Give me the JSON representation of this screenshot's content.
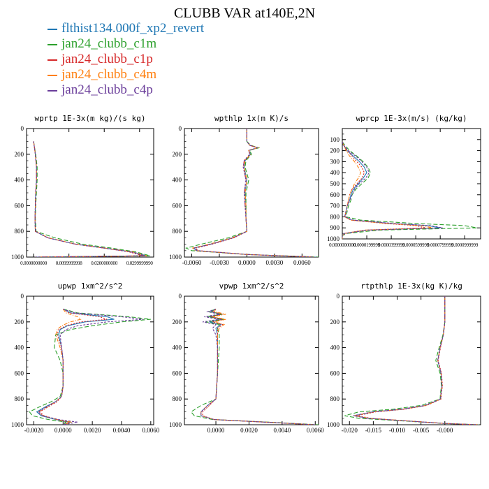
{
  "title": "CLUBB VAR at140E,2N",
  "legend": [
    {
      "name": "flthist134.000f_xp2_revert",
      "color": "#1f77b4"
    },
    {
      "name": "jan24_clubb_c1m",
      "color": "#2ca02c"
    },
    {
      "name": "jan24_clubb_c1p",
      "color": "#d62728"
    },
    {
      "name": "jan24_clubb_c4m",
      "color": "#ff7f0e"
    },
    {
      "name": "jan24_clubb_c4p",
      "color": "#6a3d9a"
    }
  ],
  "chart_data": [
    {
      "type": "line",
      "title": "wprtp  1E-3x(m kg)/(s kg)",
      "xlim": [
        -0.002,
        0.034
      ],
      "ylim": [
        0,
        1000
      ],
      "xticks": [
        0.0,
        0.01,
        0.02,
        0.03
      ],
      "xtick_labels": [
        "0.0000000000",
        "0.0099999998",
        "0.0200000000",
        "0.0299999990"
      ],
      "yticks": [
        0,
        200,
        400,
        600,
        800,
        1000
      ],
      "y": [
        100,
        200,
        300,
        400,
        500,
        600,
        700,
        800,
        850,
        900,
        930,
        960,
        990,
        1000
      ],
      "series": [
        {
          "name": "flthist134.000f_xp2_revert",
          "values": [
            0.0,
            0.0005,
            0.0008,
            0.0008,
            0.0006,
            0.0005,
            0.0004,
            0.0005,
            0.004,
            0.012,
            0.02,
            0.028,
            0.032,
            0.0005
          ]
        },
        {
          "name": "jan24_clubb_c1m",
          "values": [
            0.0,
            0.0006,
            0.001,
            0.001,
            0.0008,
            0.0006,
            0.0005,
            0.0007,
            0.006,
            0.014,
            0.022,
            0.029,
            0.033,
            0.0005
          ]
        },
        {
          "name": "jan24_clubb_c1p",
          "values": [
            0.0,
            0.0005,
            0.0008,
            0.0008,
            0.0006,
            0.0005,
            0.0004,
            0.0005,
            0.004,
            0.012,
            0.02,
            0.027,
            0.031,
            0.0005
          ]
        },
        {
          "name": "jan24_clubb_c4m",
          "values": [
            0.0,
            0.0005,
            0.0008,
            0.0008,
            0.0006,
            0.0005,
            0.0004,
            0.0005,
            0.0042,
            0.012,
            0.02,
            0.028,
            0.032,
            0.0005
          ]
        },
        {
          "name": "jan24_clubb_c4p",
          "values": [
            0.0,
            0.0005,
            0.0008,
            0.0008,
            0.0006,
            0.0005,
            0.0004,
            0.0005,
            0.004,
            0.0118,
            0.0198,
            0.0275,
            0.0315,
            0.0005
          ]
        }
      ]
    },
    {
      "type": "line",
      "title": "wpthlp  1x(m K)/s",
      "xlim": [
        -0.0068,
        0.0078
      ],
      "ylim": [
        0,
        1000
      ],
      "xticks": [
        -0.006,
        -0.003,
        0.0,
        0.003,
        0.006
      ],
      "xtick_labels": [
        "-0.0060",
        "-0.0030",
        "0.0000",
        "0.0030",
        "0.0060"
      ],
      "yticks": [
        0,
        200,
        400,
        600,
        800,
        1000
      ],
      "y": [
        0,
        100,
        130,
        150,
        170,
        200,
        250,
        300,
        400,
        500,
        600,
        700,
        800,
        850,
        900,
        930,
        950,
        980,
        1000
      ],
      "series": [
        {
          "name": "flthist134.000f_xp2_revert",
          "values": [
            0.0,
            0.0,
            0.0003,
            0.0012,
            0.0002,
            0.0004,
            -0.0002,
            -0.0003,
            0.0,
            -0.0002,
            -0.0001,
            -0.0001,
            0.0,
            -0.0015,
            -0.004,
            -0.0058,
            -0.0055,
            0.0,
            0.0075
          ]
        },
        {
          "name": "jan24_clubb_c1m",
          "values": [
            0.0,
            0.0,
            0.0004,
            0.0013,
            0.0003,
            0.0005,
            -0.0001,
            -0.0002,
            0.0002,
            -0.0001,
            -0.0001,
            -0.0001,
            0.0,
            -0.002,
            -0.005,
            -0.0066,
            -0.006,
            0.0,
            0.0078
          ]
        },
        {
          "name": "jan24_clubb_c1p",
          "values": [
            0.0,
            0.0,
            0.0003,
            0.0011,
            0.0002,
            0.0003,
            -0.0003,
            -0.0004,
            -0.0001,
            -0.0003,
            -0.0002,
            -0.0001,
            0.0,
            -0.0014,
            -0.0038,
            -0.0056,
            -0.0053,
            0.0,
            0.0072
          ]
        },
        {
          "name": "jan24_clubb_c4m",
          "values": [
            0.0,
            0.0,
            0.0003,
            0.0012,
            0.0002,
            0.0004,
            -0.0002,
            -0.0003,
            0.0,
            -0.0002,
            -0.0001,
            -0.0001,
            0.0,
            -0.0016,
            -0.0041,
            -0.0059,
            -0.0056,
            0.0,
            0.0074
          ]
        },
        {
          "name": "jan24_clubb_c4p",
          "values": [
            0.0,
            0.0,
            0.0003,
            0.0011,
            0.0002,
            0.0003,
            -0.0003,
            -0.0004,
            -0.0001,
            -0.0003,
            -0.0002,
            -0.0001,
            0.0,
            -0.0015,
            -0.0039,
            -0.0057,
            -0.0054,
            0.0,
            0.0073
          ]
        }
      ]
    },
    {
      "type": "line",
      "title": "wprcp  1E-3x(m/s) (kg/kg)",
      "xlim": [
        0,
        0.000113
      ],
      "ylim": [
        0,
        1000
      ],
      "xticks": [
        0.0,
        2e-05,
        4e-05,
        6e-05,
        8e-05,
        0.0001
      ],
      "xtick_labels": [
        "0.0000000000",
        "0.0000199999",
        "0.0000399999",
        "0.0000599999",
        "0.0000799999",
        "0.0000999999"
      ],
      "yticks": [
        100,
        200,
        300,
        400,
        500,
        600,
        700,
        800,
        900,
        1000
      ],
      "y": [
        120,
        150,
        200,
        250,
        300,
        350,
        400,
        450,
        500,
        550,
        600,
        650,
        700,
        750,
        800,
        830,
        860,
        880,
        900,
        920,
        950,
        970,
        1000
      ],
      "series": [
        {
          "name": "flthist134.000f_xp2_revert",
          "values": [
            0.0,
            1e-06,
            4e-06,
            9e-06,
            1.4e-05,
            1.8e-05,
            2e-05,
            1.7e-05,
            1.3e-05,
            9e-06,
            7e-06,
            6e-06,
            4e-06,
            3e-06,
            2e-06,
            8e-06,
            4e-05,
            7e-05,
            8e-05,
            2e-05,
            2e-06,
            0.0,
            0.0
          ]
        },
        {
          "name": "jan24_clubb_c1m",
          "values": [
            0.0,
            2e-06,
            6e-06,
            1.2e-05,
            1.7e-05,
            2.1e-05,
            2.3e-05,
            2.1e-05,
            1.6e-05,
            1.1e-05,
            8e-06,
            7e-06,
            5e-06,
            4e-06,
            3e-06,
            1.5e-05,
            6e-05,
            0.0001,
            0.00011,
            3e-05,
            4e-06,
            0.0,
            0.0
          ]
        },
        {
          "name": "jan24_clubb_c1p",
          "values": [
            0.0,
            1e-06,
            4e-06,
            8e-06,
            1.2e-05,
            1.6e-05,
            1.8e-05,
            1.6e-05,
            1.2e-05,
            8e-06,
            6e-06,
            5e-06,
            4e-06,
            3e-06,
            2e-06,
            7e-06,
            3.5e-05,
            6e-05,
            6.8e-05,
            1.8e-05,
            2e-06,
            0.0,
            0.0
          ]
        },
        {
          "name": "jan24_clubb_c4m",
          "values": [
            0.0,
            1e-06,
            3e-06,
            6e-06,
            1e-05,
            1.3e-05,
            1.5e-05,
            1.3e-05,
            1e-05,
            8e-06,
            6e-06,
            5e-06,
            4e-06,
            3e-06,
            2e-06,
            7e-06,
            3.7e-05,
            6.5e-05,
            7.4e-05,
            1.9e-05,
            2e-06,
            0.0,
            0.0
          ]
        },
        {
          "name": "jan24_clubb_c4p",
          "values": [
            0.0,
            1e-06,
            5e-06,
            1.1e-05,
            1.6e-05,
            2e-05,
            2.2e-05,
            1.9e-05,
            1.4e-05,
            1e-05,
            8e-06,
            6e-06,
            4e-06,
            3e-06,
            2e-06,
            9e-06,
            4.2e-05,
            7.2e-05,
            8.2e-05,
            2.1e-05,
            2e-06,
            0.0,
            0.0
          ]
        }
      ]
    },
    {
      "type": "line",
      "title": "upwp  1xm^2/s^2",
      "xlim": [
        -0.0025,
        0.0062
      ],
      "ylim": [
        0,
        1000
      ],
      "xticks": [
        -0.002,
        0.0,
        0.002,
        0.004,
        0.006
      ],
      "xtick_labels": [
        "-0.0020",
        "0.0000",
        "0.0020",
        "0.0040",
        "0.0060"
      ],
      "yticks": [
        0,
        200,
        400,
        600,
        800,
        1000
      ],
      "y": [
        100,
        130,
        160,
        180,
        200,
        230,
        260,
        300,
        400,
        500,
        600,
        700,
        780,
        820,
        860,
        900,
        930,
        960,
        980,
        1000
      ],
      "series": [
        {
          "name": "flthist134.000f_xp2_revert",
          "values": [
            0.0,
            0.0005,
            0.003,
            0.0035,
            0.0015,
            0.0003,
            -0.0002,
            -0.0003,
            -0.0001,
            0.0,
            0.0,
            0.0,
            -0.0001,
            -0.0005,
            -0.0012,
            -0.0018,
            -0.0015,
            -0.0005,
            0.0005,
            0.0
          ]
        },
        {
          "name": "jan24_clubb_c1m",
          "values": [
            0.0,
            0.001,
            0.0045,
            0.006,
            0.004,
            0.002,
            0.0005,
            -0.0005,
            -0.0006,
            -0.0002,
            0.0,
            0.0,
            -0.0002,
            -0.0008,
            -0.0016,
            -0.0023,
            -0.0021,
            -0.001,
            0.0002,
            0.0
          ]
        },
        {
          "name": "jan24_clubb_c1p",
          "values": [
            0.0,
            0.0004,
            0.0025,
            0.003,
            0.0012,
            0.0002,
            -0.0003,
            -0.0004,
            -0.0001,
            0.0,
            0.0,
            0.0,
            -0.0001,
            -0.0004,
            -0.001,
            -0.0016,
            -0.0013,
            -0.0004,
            0.0004,
            0.0
          ]
        },
        {
          "name": "jan24_clubb_c4m",
          "values": [
            0.0,
            0.0002,
            0.001,
            0.0012,
            0.0005,
            -0.0001,
            -0.0004,
            -0.0005,
            -0.0002,
            0.0,
            0.0,
            0.0,
            -0.0001,
            -0.0005,
            -0.0011,
            -0.0017,
            -0.0014,
            -0.0004,
            0.0006,
            0.0
          ]
        },
        {
          "name": "jan24_clubb_c4p",
          "values": [
            0.0,
            0.0008,
            0.004,
            0.0055,
            0.003,
            0.001,
            0.0002,
            -0.0002,
            -0.0001,
            0.0,
            0.0,
            0.0,
            -0.0001,
            -0.0005,
            -0.0011,
            -0.0017,
            -0.0014,
            -0.0003,
            0.001,
            0.0
          ]
        }
      ]
    },
    {
      "type": "line",
      "title": "vpwp  1xm^2/s^2",
      "xlim": [
        -0.0019,
        0.0062
      ],
      "ylim": [
        0,
        1000
      ],
      "xticks": [
        0.0,
        0.002,
        0.004,
        0.006
      ],
      "xtick_labels": [
        "0.0000",
        "0.0020",
        "0.0040",
        "0.0060"
      ],
      "yticks": [
        0,
        200,
        400,
        600,
        800,
        1000
      ],
      "y": [
        100,
        120,
        140,
        160,
        180,
        200,
        220,
        250,
        300,
        400,
        600,
        800,
        850,
        900,
        930,
        960,
        980,
        1000
      ],
      "series": [
        {
          "name": "flthist134.000f_xp2_revert",
          "values": [
            0.0,
            -0.0003,
            0.0003,
            -0.0004,
            0.0004,
            -0.0004,
            0.0003,
            0.0,
            0.0001,
            0.0001,
            0.0001,
            0.0,
            -0.0005,
            -0.0009,
            -0.0009,
            -0.0001,
            0.003,
            0.006
          ]
        },
        {
          "name": "jan24_clubb_c1m",
          "values": [
            0.0,
            -0.0004,
            0.0004,
            -0.0005,
            0.0005,
            -0.0006,
            0.0002,
            0.0001,
            0.0002,
            0.0002,
            0.0001,
            0.0,
            -0.0009,
            -0.0015,
            -0.0013,
            -0.0002,
            0.0032,
            0.0062
          ]
        },
        {
          "name": "jan24_clubb_c1p",
          "values": [
            0.0,
            -0.0002,
            0.0004,
            -0.0003,
            0.0005,
            -0.0002,
            0.0004,
            0.0001,
            0.0001,
            0.0001,
            0.0001,
            0.0,
            -0.0004,
            -0.0008,
            -0.0008,
            -0.0001,
            0.0029,
            0.0059
          ]
        },
        {
          "name": "jan24_clubb_c4m",
          "values": [
            0.0,
            -0.0001,
            0.0006,
            -0.0002,
            0.0006,
            -0.0001,
            0.0005,
            0.0002,
            0.0001,
            0.0001,
            0.0001,
            0.0,
            -0.0005,
            -0.0009,
            -0.0009,
            -0.0001,
            0.003,
            0.006
          ]
        },
        {
          "name": "jan24_clubb_c4p",
          "values": [
            0.0,
            -0.0005,
            0.0002,
            -0.0007,
            0.0002,
            -0.0008,
            0.0,
            -0.0002,
            0.0,
            0.0001,
            0.0001,
            0.0,
            -0.0005,
            -0.0009,
            -0.0009,
            -0.0001,
            0.003,
            0.006
          ]
        }
      ]
    },
    {
      "type": "line",
      "title": "rtpthlp  1E-3x(kg K)/kg",
      "xlim": [
        -0.0215,
        0.0075
      ],
      "ylim": [
        0,
        1000
      ],
      "xticks": [
        -0.02,
        -0.015,
        -0.01,
        -0.005,
        0.0
      ],
      "xtick_labels": [
        "-0.020",
        "-0.015",
        "-0.010",
        "-0.005",
        "-0.000"
      ],
      "yticks": [
        0,
        200,
        400,
        600,
        800,
        1000
      ],
      "y": [
        0,
        100,
        200,
        300,
        400,
        500,
        600,
        700,
        750,
        800,
        850,
        880,
        900,
        930,
        950,
        970,
        990,
        1000
      ],
      "series": [
        {
          "name": "flthist134.000f_xp2_revert",
          "values": [
            0.0,
            0.0,
            0.0,
            -0.0003,
            -0.001,
            -0.0015,
            -0.0008,
            -0.0006,
            -0.0008,
            -0.0009,
            -0.004,
            -0.009,
            -0.015,
            -0.019,
            -0.016,
            -0.008,
            0.0,
            0.007
          ]
        },
        {
          "name": "jan24_clubb_c1m",
          "values": [
            0.0,
            0.0,
            0.0,
            -0.0004,
            -0.0012,
            -0.0019,
            -0.001,
            -0.0007,
            -0.0009,
            -0.001,
            -0.005,
            -0.011,
            -0.018,
            -0.021,
            -0.018,
            -0.009,
            0.0,
            0.0072
          ]
        },
        {
          "name": "jan24_clubb_c1p",
          "values": [
            0.0,
            0.0,
            0.0,
            -0.0003,
            -0.0009,
            -0.0014,
            -0.0007,
            -0.0005,
            -0.0007,
            -0.0008,
            -0.0038,
            -0.0085,
            -0.0145,
            -0.0185,
            -0.0155,
            -0.0078,
            0.0,
            0.0068
          ]
        },
        {
          "name": "jan24_clubb_c4m",
          "values": [
            0.0,
            0.0,
            0.0,
            -0.0003,
            -0.001,
            -0.0015,
            -0.0008,
            -0.0006,
            -0.0008,
            -0.0009,
            -0.004,
            -0.009,
            -0.015,
            -0.019,
            -0.016,
            -0.008,
            0.0,
            0.007
          ]
        },
        {
          "name": "jan24_clubb_c4p",
          "values": [
            0.0,
            0.0,
            0.0,
            -0.0003,
            -0.001,
            -0.0015,
            -0.0008,
            -0.0006,
            -0.0008,
            -0.0009,
            -0.0042,
            -0.0092,
            -0.0152,
            -0.0192,
            -0.0162,
            -0.0082,
            0.0,
            0.007
          ]
        }
      ]
    }
  ]
}
